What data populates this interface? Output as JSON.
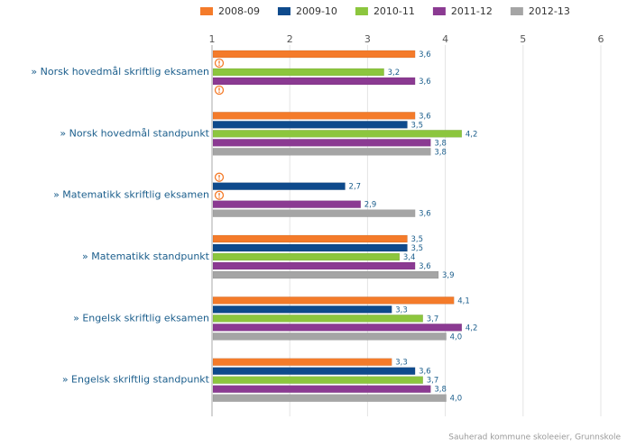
{
  "chart_data": {
    "type": "bar",
    "orientation": "horizontal",
    "categories": [
      "» Norsk hovedmål skriftlig eksamen",
      "» Norsk hovedmål standpunkt",
      "» Matematikk skriftlig eksamen",
      "» Matematikk standpunkt",
      "» Engelsk skriftlig eksamen",
      "» Engelsk skriftlig standpunkt"
    ],
    "series": [
      {
        "name": "2008-09",
        "color": "#f47b2a",
        "values": [
          3.6,
          3.6,
          null,
          3.5,
          4.1,
          3.3
        ],
        "value_labels": [
          "3,6",
          "3,6",
          null,
          "3,5",
          "4,1",
          "3,3"
        ]
      },
      {
        "name": "2009-10",
        "color": "#0e4a8c",
        "values": [
          null,
          3.5,
          2.7,
          3.5,
          3.3,
          3.6
        ],
        "value_labels": [
          null,
          "3,5",
          "2,7",
          "3,5",
          "3,3",
          "3,6"
        ]
      },
      {
        "name": "2010-11",
        "color": "#8cc63e",
        "values": [
          3.2,
          4.2,
          null,
          3.4,
          3.7,
          3.7
        ],
        "value_labels": [
          "3,2",
          "4,2",
          null,
          "3,4",
          "3,7",
          "3,7"
        ]
      },
      {
        "name": "2011-12",
        "color": "#8b3a92",
        "values": [
          3.6,
          3.8,
          2.9,
          3.6,
          4.2,
          3.8
        ],
        "value_labels": [
          "3,6",
          "3,8",
          "2,9",
          "3,6",
          "4,2",
          "3,8"
        ]
      },
      {
        "name": "2012-13",
        "color": "#a5a5a5",
        "values": [
          null,
          3.8,
          3.6,
          3.9,
          4.0,
          4.0
        ],
        "value_labels": [
          null,
          "3,8",
          "3,6",
          "3,9",
          "4,0",
          "4,0"
        ]
      }
    ],
    "xlim": [
      1,
      6
    ],
    "xticks": [
      1,
      2,
      3,
      4,
      5,
      6
    ],
    "grid": true,
    "legend": "top",
    "credit": "Sauherad kommune skoleeier, Grunnskole"
  }
}
